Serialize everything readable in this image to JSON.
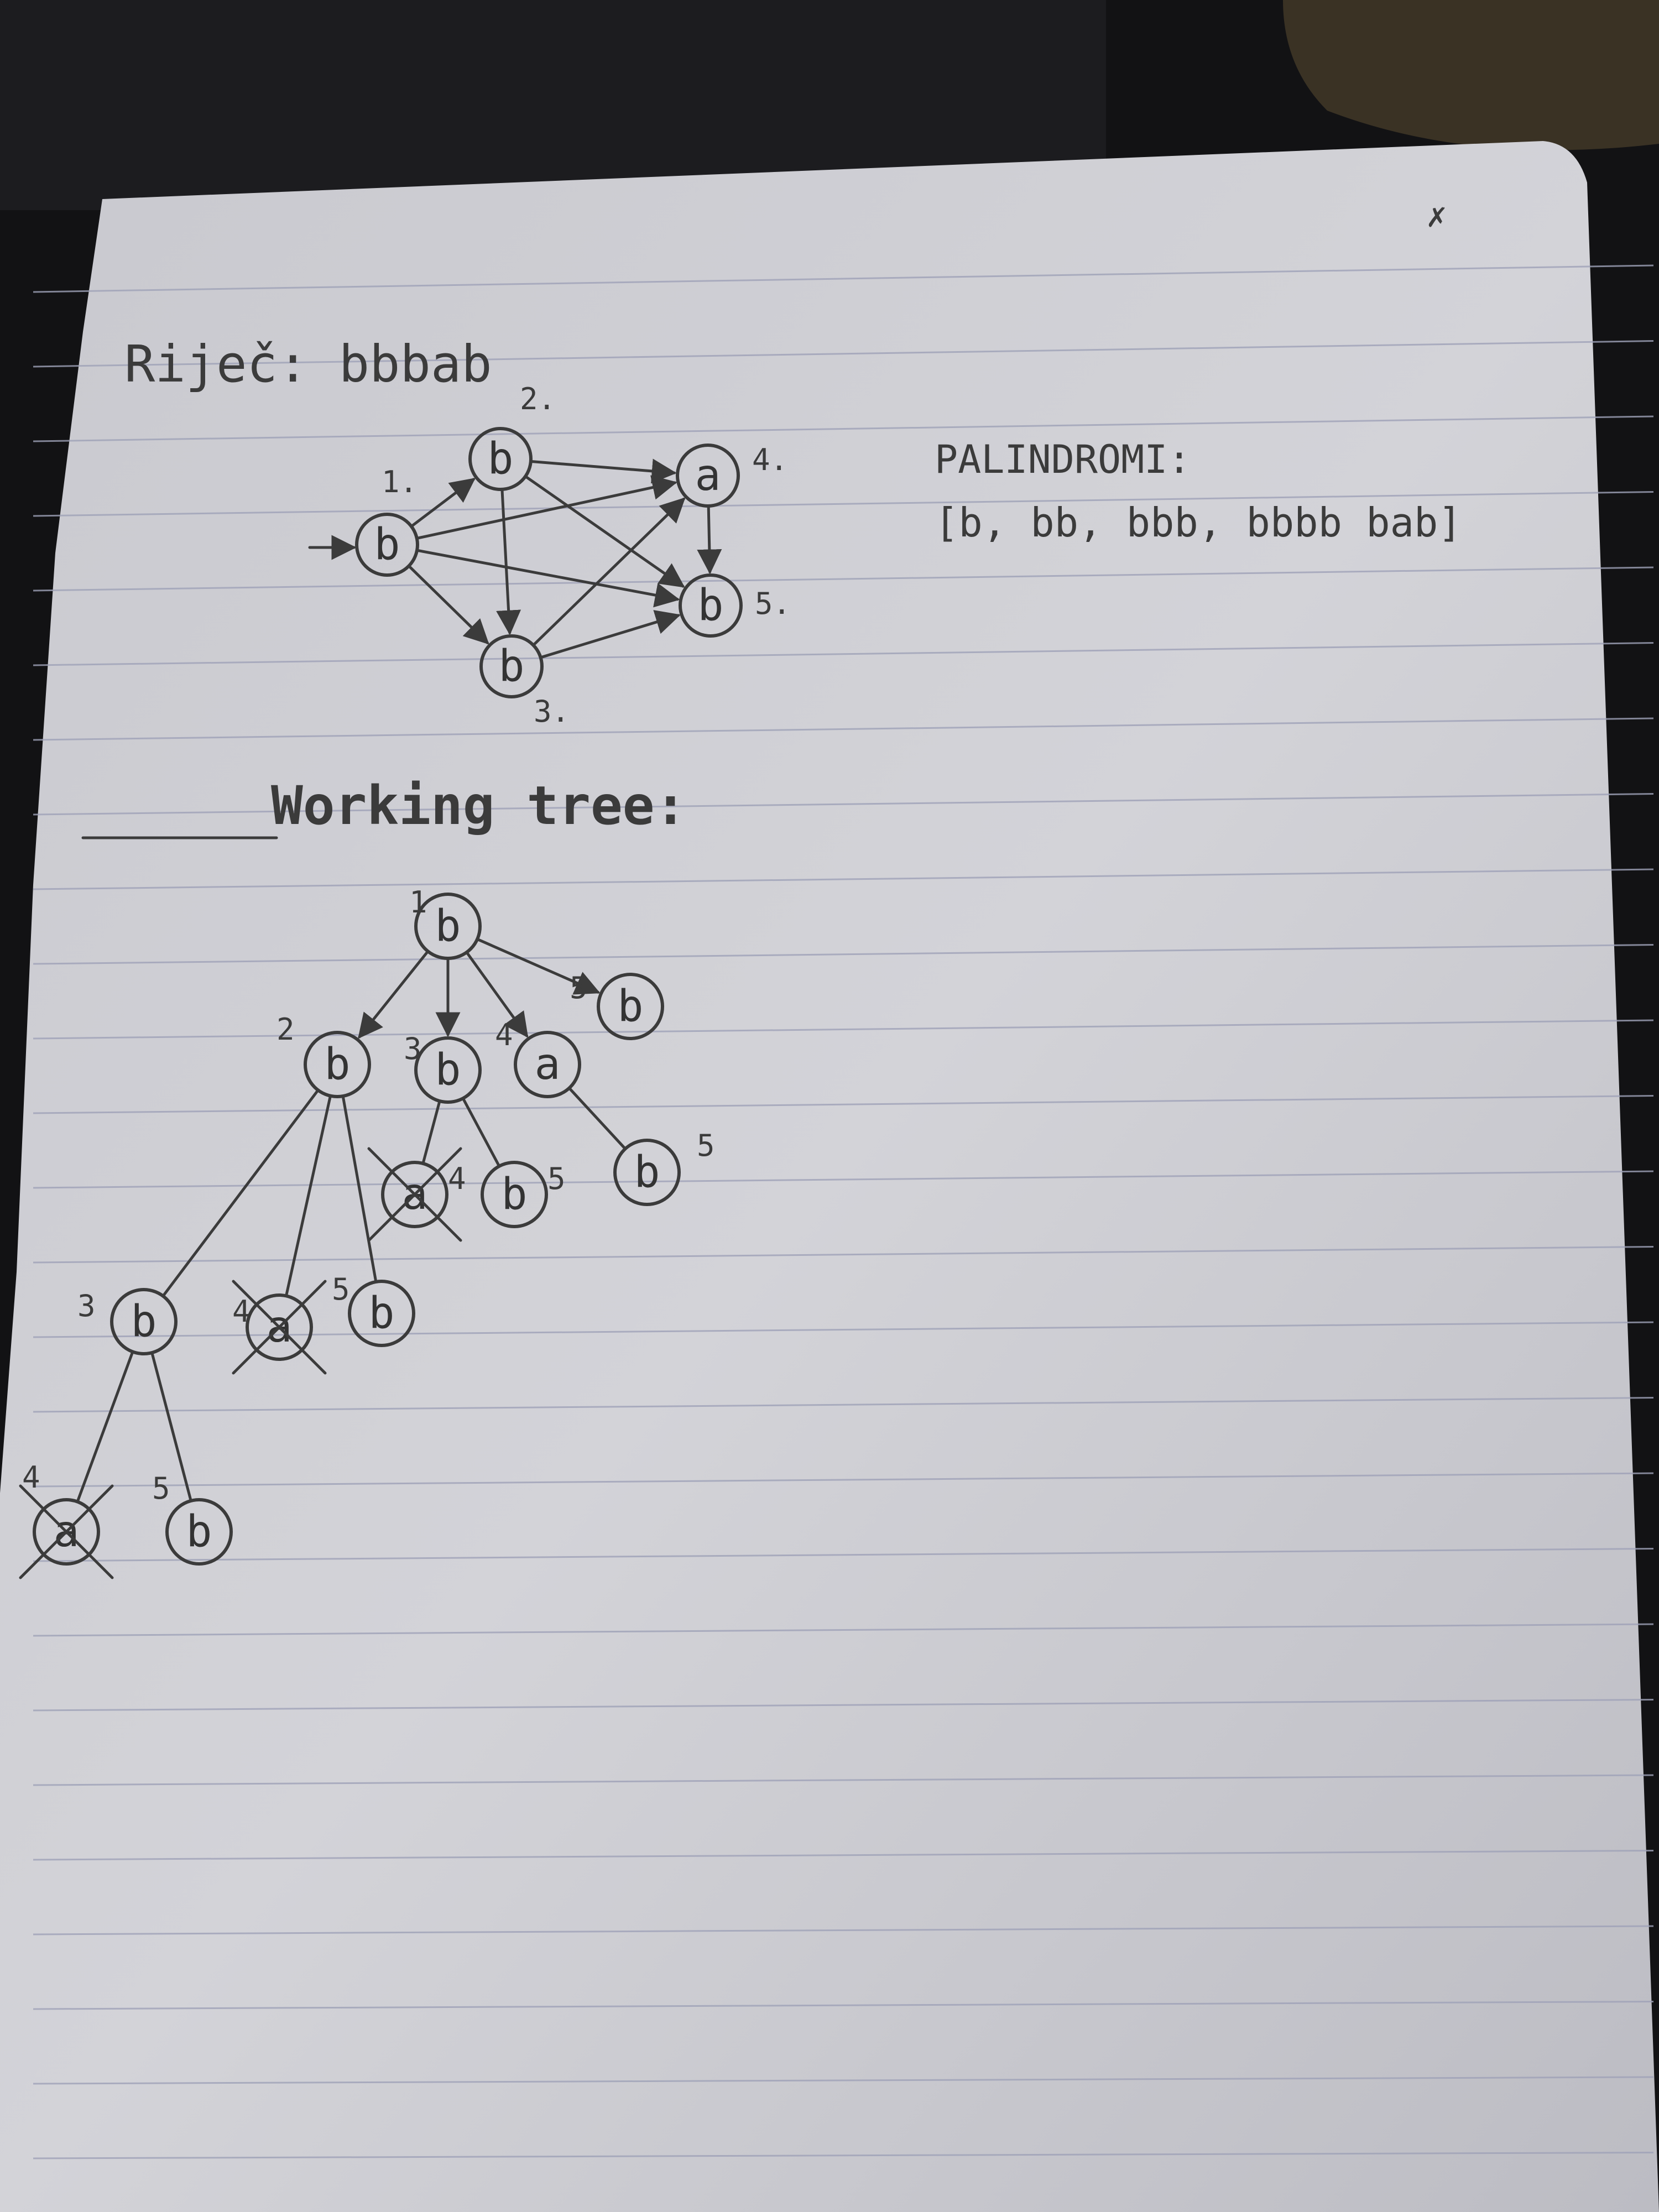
{
  "colors": {
    "background": "#121214",
    "paper": "#d2d2d6",
    "ink": "#3b3b3b",
    "rule_lines": "#9fa2b8"
  },
  "heading_word": "Riječ: bbbab",
  "palindromes": {
    "title": "PALINDROMI:",
    "list": "[b, bb, bbb, bbbb bab]"
  },
  "graph": {
    "nodes": [
      {
        "id": "1",
        "letter": "b",
        "label": "1."
      },
      {
        "id": "2",
        "letter": "b",
        "label": "2."
      },
      {
        "id": "3",
        "letter": "b",
        "label": "3."
      },
      {
        "id": "4",
        "letter": "a",
        "label": "4."
      },
      {
        "id": "5",
        "letter": "b",
        "label": "5."
      }
    ],
    "edges": [
      [
        "1",
        "2"
      ],
      [
        "1",
        "3"
      ],
      [
        "1",
        "4"
      ],
      [
        "1",
        "5"
      ],
      [
        "2",
        "3"
      ],
      [
        "2",
        "4"
      ],
      [
        "2",
        "5"
      ],
      [
        "3",
        "4"
      ],
      [
        "3",
        "5"
      ],
      [
        "4",
        "5"
      ]
    ]
  },
  "tree": {
    "title": "Working tree:",
    "nodes": [
      {
        "id": "r",
        "letter": "b",
        "num": "1",
        "crossed": false
      },
      {
        "id": "n2",
        "letter": "b",
        "num": "2",
        "crossed": false
      },
      {
        "id": "n3",
        "letter": "b",
        "num": "3",
        "crossed": false
      },
      {
        "id": "n4",
        "letter": "a",
        "num": "4",
        "crossed": false
      },
      {
        "id": "n5",
        "letter": "b",
        "num": "5",
        "crossed": false
      },
      {
        "id": "n3a",
        "letter": "a",
        "num": "4",
        "crossed": true
      },
      {
        "id": "n3b",
        "letter": "b",
        "num": "5",
        "crossed": false
      },
      {
        "id": "n4a",
        "letter": "b",
        "num": "5",
        "crossed": false
      },
      {
        "id": "n2a",
        "letter": "b",
        "num": "3",
        "crossed": false
      },
      {
        "id": "n2b",
        "letter": "a",
        "num": "4",
        "crossed": true
      },
      {
        "id": "n2c",
        "letter": "b",
        "num": "5",
        "crossed": false
      },
      {
        "id": "n2aa",
        "letter": "a",
        "num": "4",
        "crossed": true
      },
      {
        "id": "n2ab",
        "letter": "b",
        "num": "5",
        "crossed": false
      }
    ],
    "edges": [
      [
        "r",
        "n2"
      ],
      [
        "r",
        "n3"
      ],
      [
        "r",
        "n4"
      ],
      [
        "r",
        "n5"
      ],
      [
        "n3",
        "n3a"
      ],
      [
        "n3",
        "n3b"
      ],
      [
        "n4",
        "n4a"
      ],
      [
        "n2",
        "n2a"
      ],
      [
        "n2",
        "n2b"
      ],
      [
        "n2",
        "n2c"
      ],
      [
        "n2a",
        "n2aa"
      ],
      [
        "n2a",
        "n2ab"
      ]
    ]
  }
}
